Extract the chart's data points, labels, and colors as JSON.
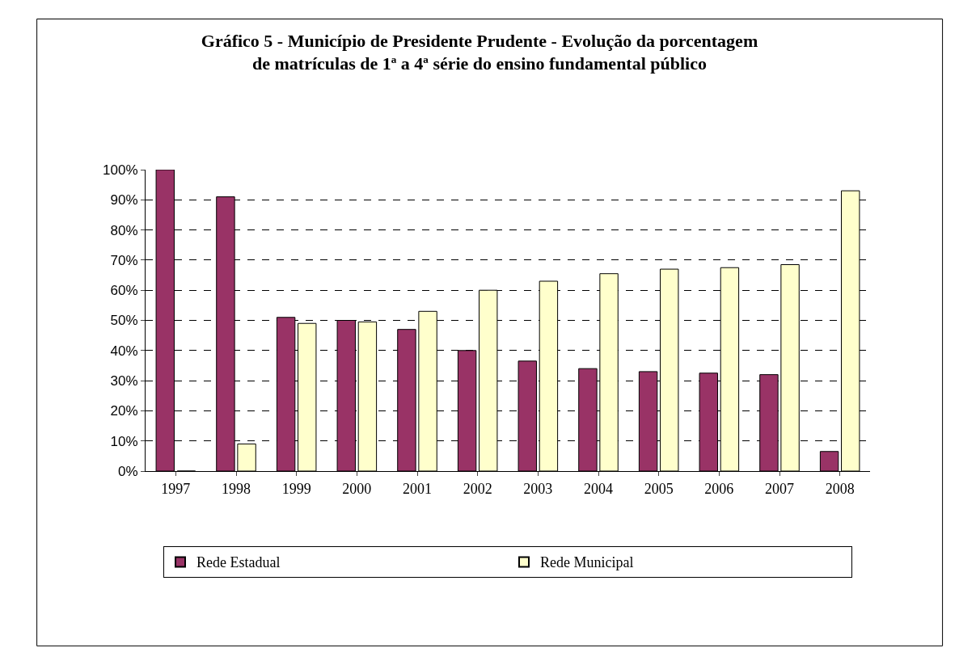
{
  "chart_data": {
    "type": "bar",
    "title": "Gráfico 5 - Município de Presidente Prudente - Evolução da porcentagem\nde matrículas de 1ª a 4ª série do ensino fundamental público",
    "categories": [
      "1997",
      "1998",
      "1999",
      "2000",
      "2001",
      "2002",
      "2003",
      "2004",
      "2005",
      "2006",
      "2007",
      "2008"
    ],
    "series": [
      {
        "name": "Rede Estadual",
        "color": "#993366",
        "values": [
          100,
          91,
          51,
          50,
          47,
          40,
          36.5,
          34,
          33,
          32.5,
          32,
          6.5
        ]
      },
      {
        "name": "Rede Municipal",
        "color": "#ffffcc",
        "values": [
          0,
          9,
          49,
          49.5,
          53,
          60,
          63,
          65.5,
          67,
          67.5,
          68.5,
          93
        ]
      }
    ],
    "ylim": [
      0,
      100
    ],
    "yticks": [
      {
        "value": 0,
        "label": "0%"
      },
      {
        "value": 10,
        "label": "10%"
      },
      {
        "value": 20,
        "label": "20%"
      },
      {
        "value": 30,
        "label": "30%"
      },
      {
        "value": 40,
        "label": "40%"
      },
      {
        "value": 50,
        "label": "50%"
      },
      {
        "value": 60,
        "label": "60%"
      },
      {
        "value": 70,
        "label": "70%"
      },
      {
        "value": 80,
        "label": "80%"
      },
      {
        "value": 90,
        "label": "90%"
      },
      {
        "value": 100,
        "label": "100%"
      }
    ],
    "grid": "y",
    "legend": "bottom"
  }
}
